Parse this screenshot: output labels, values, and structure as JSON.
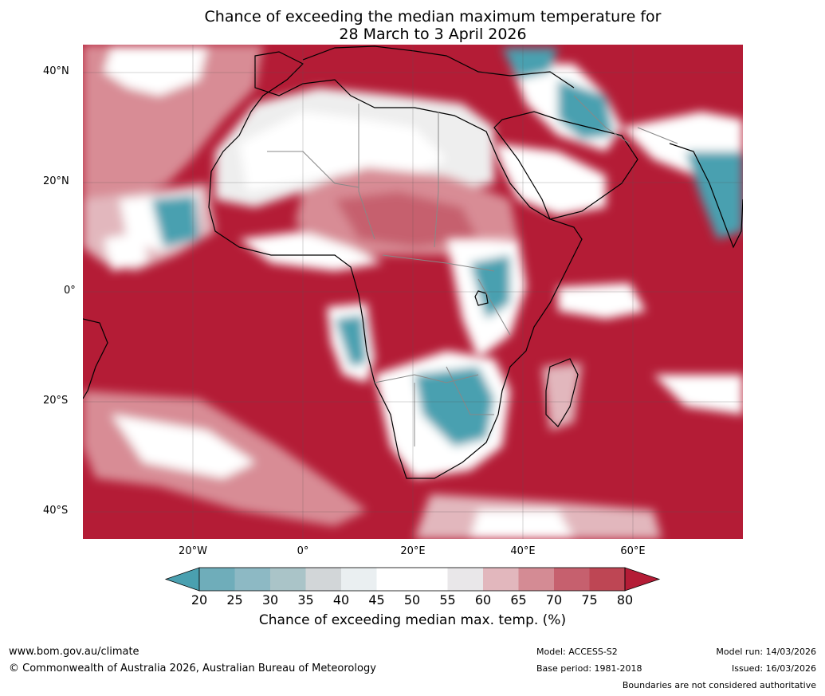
{
  "title": {
    "line1": "Chance of exceeding the median maximum temperature for",
    "line2": "28 March to 3 April 2026"
  },
  "map": {
    "lat_labels": [
      "40°N",
      "20°N",
      "0°",
      "20°S",
      "40°S"
    ],
    "lon_labels": [
      "20°W",
      "0°",
      "20°E",
      "40°E",
      "60°E"
    ],
    "colors": {
      "ocean_warm": "#b41c36",
      "teal": "#4aa0b0",
      "white": "#ffffff",
      "light_grey": "#e8e8ea",
      "pink": "#d88c95",
      "coast": "#000000",
      "border": "#888888"
    }
  },
  "colorbar": {
    "ticks": [
      "20",
      "25",
      "30",
      "35",
      "40",
      "45",
      "50",
      "55",
      "60",
      "65",
      "70",
      "75",
      "80"
    ],
    "colors": [
      "#4aa0b0",
      "#6fadba",
      "#8db9c4",
      "#aac4c8",
      "#d2d6d8",
      "#eaeff1",
      "#ffffff",
      "#ffffff",
      "#e9e7e9",
      "#e2b7bd",
      "#d48b94",
      "#c6606e",
      "#be4654",
      "#b41c36"
    ],
    "title": "Chance of exceeding median max. temp. (%)"
  },
  "footer": {
    "website": "www.bom.gov.au/climate",
    "copyright": "© Commonwealth of Australia 2026, Australian Bureau of Meteorology",
    "model": "Model: ACCESS-S2",
    "base_period": "Base period: 1981-2018",
    "model_run": "Model run: 14/03/2026",
    "issued": "Issued: 16/03/2026",
    "disclaimer": "Boundaries are not considered authoritative"
  }
}
